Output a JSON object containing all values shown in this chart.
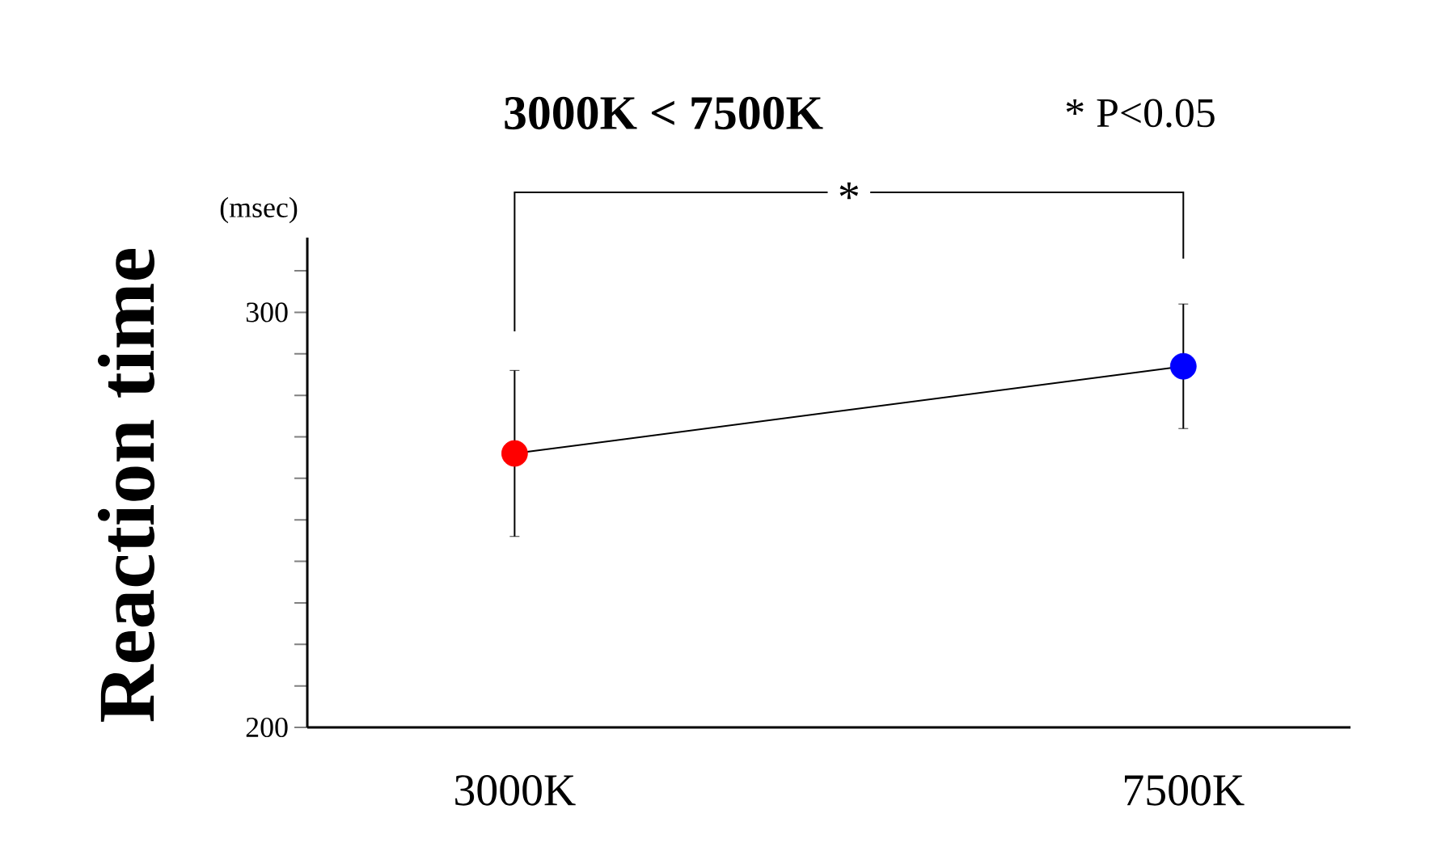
{
  "chart_data": {
    "type": "line",
    "title": "3000K < 7500K",
    "ylabel": "Reaction time",
    "annotations": [
      "(msec)",
      "* P<0.05",
      "*"
    ],
    "categories": [
      "3000K",
      "7500K"
    ],
    "series": [
      {
        "color": "#000000",
        "colors": [
          "#ff0000",
          "#0000ff"
        ],
        "values": [
          266,
          287
        ],
        "errors": [
          20,
          15
        ]
      }
    ],
    "ylim": [
      200,
      318
    ],
    "yticks": [
      200,
      {
        "value": 210,
        "label": null
      },
      {
        "value": 220,
        "label": null
      },
      {
        "value": 230,
        "label": null
      },
      {
        "value": 240,
        "label": null
      },
      {
        "value": 250,
        "label": null
      },
      {
        "value": 260,
        "label": null
      },
      {
        "value": 270,
        "label": null
      },
      {
        "value": 280,
        "label": null
      },
      {
        "value": 290,
        "label": null
      },
      300,
      {
        "value": 310,
        "label": null
      }
    ],
    "marker": "circle",
    "grid": false
  }
}
